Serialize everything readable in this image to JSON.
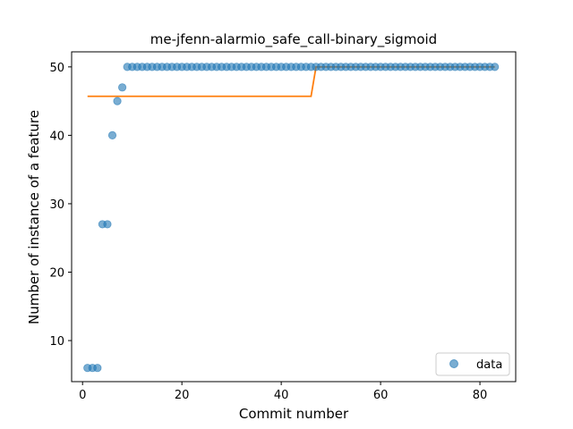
{
  "chart_data": {
    "type": "scatter",
    "title": "me-jfenn-alarmio_safe_call-binary_sigmoid",
    "xlabel": "Commit number",
    "ylabel": "Number of instance of a feature",
    "xlim": [
      -2.2,
      87.2
    ],
    "ylim": [
      4.0,
      52.2
    ],
    "xticks": [
      0,
      20,
      40,
      60,
      80
    ],
    "yticks": [
      10,
      20,
      30,
      40,
      50
    ],
    "grid": false,
    "legend": {
      "placement": "lower right",
      "entries": [
        "data"
      ]
    },
    "colors": {
      "data": "#1f77b4",
      "fit": "#ff7f0e"
    },
    "series": [
      {
        "name": "data",
        "kind": "scatter",
        "x": [
          1,
          2,
          3,
          4,
          5,
          6,
          7,
          8,
          9,
          10,
          11,
          12,
          13,
          14,
          15,
          16,
          17,
          18,
          19,
          20,
          21,
          22,
          23,
          24,
          25,
          26,
          27,
          28,
          29,
          30,
          31,
          32,
          33,
          34,
          35,
          36,
          37,
          38,
          39,
          40,
          41,
          42,
          43,
          44,
          45,
          46,
          47,
          48,
          49,
          50,
          51,
          52,
          53,
          54,
          55,
          56,
          57,
          58,
          59,
          60,
          61,
          62,
          63,
          64,
          65,
          66,
          67,
          68,
          69,
          70,
          71,
          72,
          73,
          74,
          75,
          76,
          77,
          78,
          79,
          80,
          81,
          82,
          83
        ],
        "y": [
          6,
          6,
          6,
          27,
          27,
          40,
          45,
          47,
          50,
          50,
          50,
          50,
          50,
          50,
          50,
          50,
          50,
          50,
          50,
          50,
          50,
          50,
          50,
          50,
          50,
          50,
          50,
          50,
          50,
          50,
          50,
          50,
          50,
          50,
          50,
          50,
          50,
          50,
          50,
          50,
          50,
          50,
          50,
          50,
          50,
          50,
          50,
          50,
          50,
          50,
          50,
          50,
          50,
          50,
          50,
          50,
          50,
          50,
          50,
          50,
          50,
          50,
          50,
          50,
          50,
          50,
          50,
          50,
          50,
          50,
          50,
          50,
          50,
          50,
          50,
          50,
          50,
          50,
          50,
          50,
          50,
          50,
          50
        ]
      },
      {
        "kind": "line",
        "x": [
          1,
          46,
          47,
          83
        ],
        "y": [
          45.7,
          45.7,
          50.0,
          50.0
        ]
      }
    ]
  }
}
